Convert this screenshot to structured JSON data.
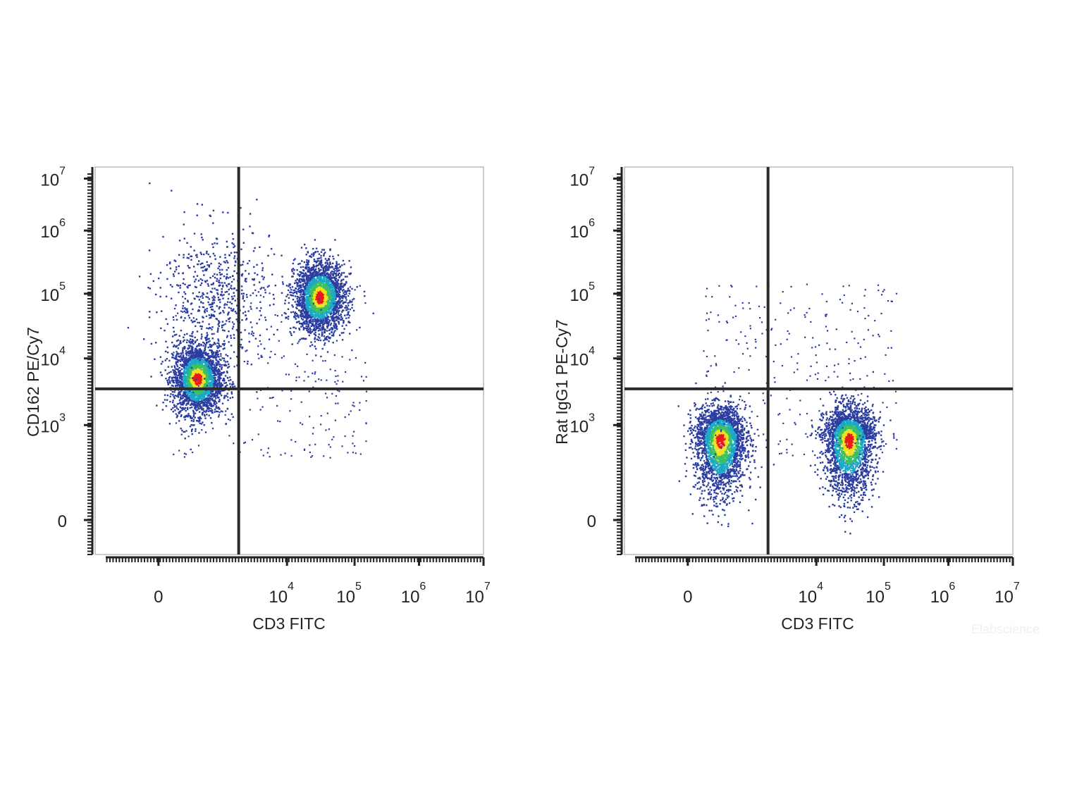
{
  "chart_data": [
    {
      "type": "scatter",
      "title": "",
      "xlabel": "CD3 FITC",
      "ylabel": "CD162 PE/Cy7",
      "x_scale": "biexponential",
      "y_scale": "biexponential",
      "x_ticks": [
        {
          "value": 0,
          "base": "0",
          "exp": ""
        },
        {
          "value": 10000,
          "base": "10",
          "exp": "4"
        },
        {
          "value": 100000,
          "base": "10",
          "exp": "5"
        },
        {
          "value": 1000000,
          "base": "10",
          "exp": "6"
        },
        {
          "value": 10000000,
          "base": "10",
          "exp": "7"
        }
      ],
      "y_ticks": [
        {
          "value": 0,
          "base": "0",
          "exp": ""
        },
        {
          "value": 1000,
          "base": "10",
          "exp": "3"
        },
        {
          "value": 10000,
          "base": "10",
          "exp": "4"
        },
        {
          "value": 100000,
          "base": "10",
          "exp": "5"
        },
        {
          "value": 1000000,
          "base": "10",
          "exp": "6"
        },
        {
          "value": 10000000,
          "base": "10",
          "exp": "7"
        }
      ],
      "gate": {
        "x": 2000,
        "y": 3500
      },
      "populations": [
        {
          "name": "",
          "x_center": 500,
          "y_center": 5000,
          "density": "high"
        },
        {
          "name": "",
          "x_center": 30000,
          "y_center": 90000,
          "density": "high"
        },
        {
          "name": "",
          "x_center": 900,
          "y_center": 100000,
          "density": "low"
        }
      ]
    },
    {
      "type": "scatter",
      "title": "",
      "xlabel": "CD3 FITC",
      "ylabel": "Rat IgG1 PE-Cy7",
      "x_scale": "biexponential",
      "y_scale": "biexponential",
      "x_ticks": [
        {
          "value": 0,
          "base": "0",
          "exp": ""
        },
        {
          "value": 10000,
          "base": "10",
          "exp": "4"
        },
        {
          "value": 100000,
          "base": "10",
          "exp": "5"
        },
        {
          "value": 1000000,
          "base": "10",
          "exp": "6"
        },
        {
          "value": 10000000,
          "base": "10",
          "exp": "7"
        }
      ],
      "y_ticks": [
        {
          "value": 0,
          "base": "0",
          "exp": ""
        },
        {
          "value": 1000,
          "base": "10",
          "exp": "3"
        },
        {
          "value": 10000,
          "base": "10",
          "exp": "4"
        },
        {
          "value": 100000,
          "base": "10",
          "exp": "5"
        },
        {
          "value": 1000000,
          "base": "10",
          "exp": "6"
        },
        {
          "value": 10000000,
          "base": "10",
          "exp": "7"
        }
      ],
      "gate": {
        "x": 2000,
        "y": 3500
      },
      "populations": [
        {
          "name": "",
          "x_center": 400,
          "y_center": 800,
          "density": "high"
        },
        {
          "name": "",
          "x_center": 30000,
          "y_center": 800,
          "density": "high"
        }
      ]
    }
  ],
  "watermark": "Elabscience",
  "colors": {
    "density_low": "#2b3da0",
    "density_mid_low": "#1aa8c8",
    "density_mid": "#3cc060",
    "density_mid_high": "#f0e020",
    "density_high": "#e81a1a",
    "axis": "#222222",
    "gate_line": "#2a2a2a"
  }
}
